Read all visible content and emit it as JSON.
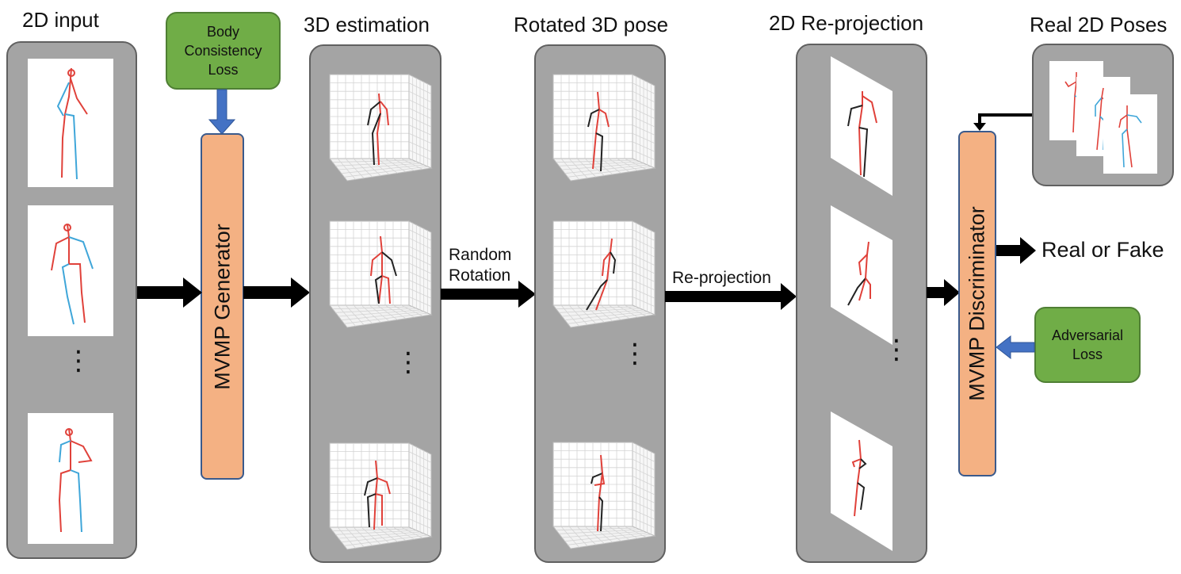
{
  "titles": {
    "input": "2D input",
    "estimation": "3D estimation",
    "rotated": "Rotated 3D pose",
    "reprojection": "2D Re-projection",
    "real": "Real 2D Poses"
  },
  "generator_label": "MVMP Generator",
  "discriminator_label": "MVMP Discriminator",
  "body_loss": [
    "Body",
    "Consistency",
    "Loss"
  ],
  "adversarial_loss": [
    "Adversarial",
    "Loss"
  ],
  "arrow_labels": {
    "rotation": [
      "Random",
      "Rotation"
    ],
    "reprojection": "Re-projection",
    "output": "Real or Fake"
  },
  "ellipsis": "⋮",
  "colors": {
    "panel": "#a4a4a4",
    "module": "#f4b183",
    "loss": "#70ad47",
    "feedback_arrow": "#4472c4",
    "limb_red": "#e0413a",
    "limb_blue": "#3fa6d9",
    "limb_black": "#222222"
  }
}
